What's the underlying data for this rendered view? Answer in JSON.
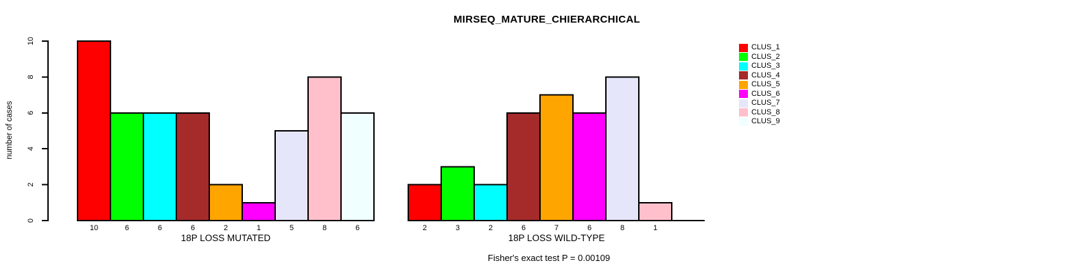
{
  "figure": {
    "background": "#FFFFFF",
    "text_color": "#000000"
  },
  "chart_data": {
    "type": "bar",
    "title": "MIRSEQ_MATURE_CHIERARCHICAL",
    "ylabel": "number of cases",
    "xlabel": "",
    "ylim": [
      0,
      10
    ],
    "yticks": [
      0,
      2,
      4,
      6,
      8,
      10
    ],
    "grid": false,
    "legend_position": "right",
    "categories": [
      "CLUS_1",
      "CLUS_2",
      "CLUS_3",
      "CLUS_4",
      "CLUS_5",
      "CLUS_6",
      "CLUS_7",
      "CLUS_8",
      "CLUS_9"
    ],
    "colors": [
      "#FF0000",
      "#00FF00",
      "#00FFFF",
      "#A52A2A",
      "#FFA500",
      "#FF00FF",
      "#E6E6FA",
      "#FFC0CB",
      "#F0FFFF"
    ],
    "bar_border_color": "#000000",
    "groups": [
      {
        "xlabel": "18P LOSS MUTATED",
        "values": [
          10,
          6,
          6,
          6,
          2,
          1,
          5,
          8,
          6
        ],
        "bar_labels": [
          "10",
          "6",
          "6",
          "6",
          "2",
          "1",
          "5",
          "8",
          "6"
        ]
      },
      {
        "xlabel": "18P LOSS WILD-TYPE",
        "values": [
          2,
          3,
          2,
          6,
          7,
          6,
          8,
          1,
          0
        ],
        "bar_labels": [
          "2",
          "3",
          "2",
          "6",
          "7",
          "6",
          "8",
          "1",
          ""
        ]
      }
    ],
    "annotation": "Fisher's exact test P = 0.00109"
  }
}
